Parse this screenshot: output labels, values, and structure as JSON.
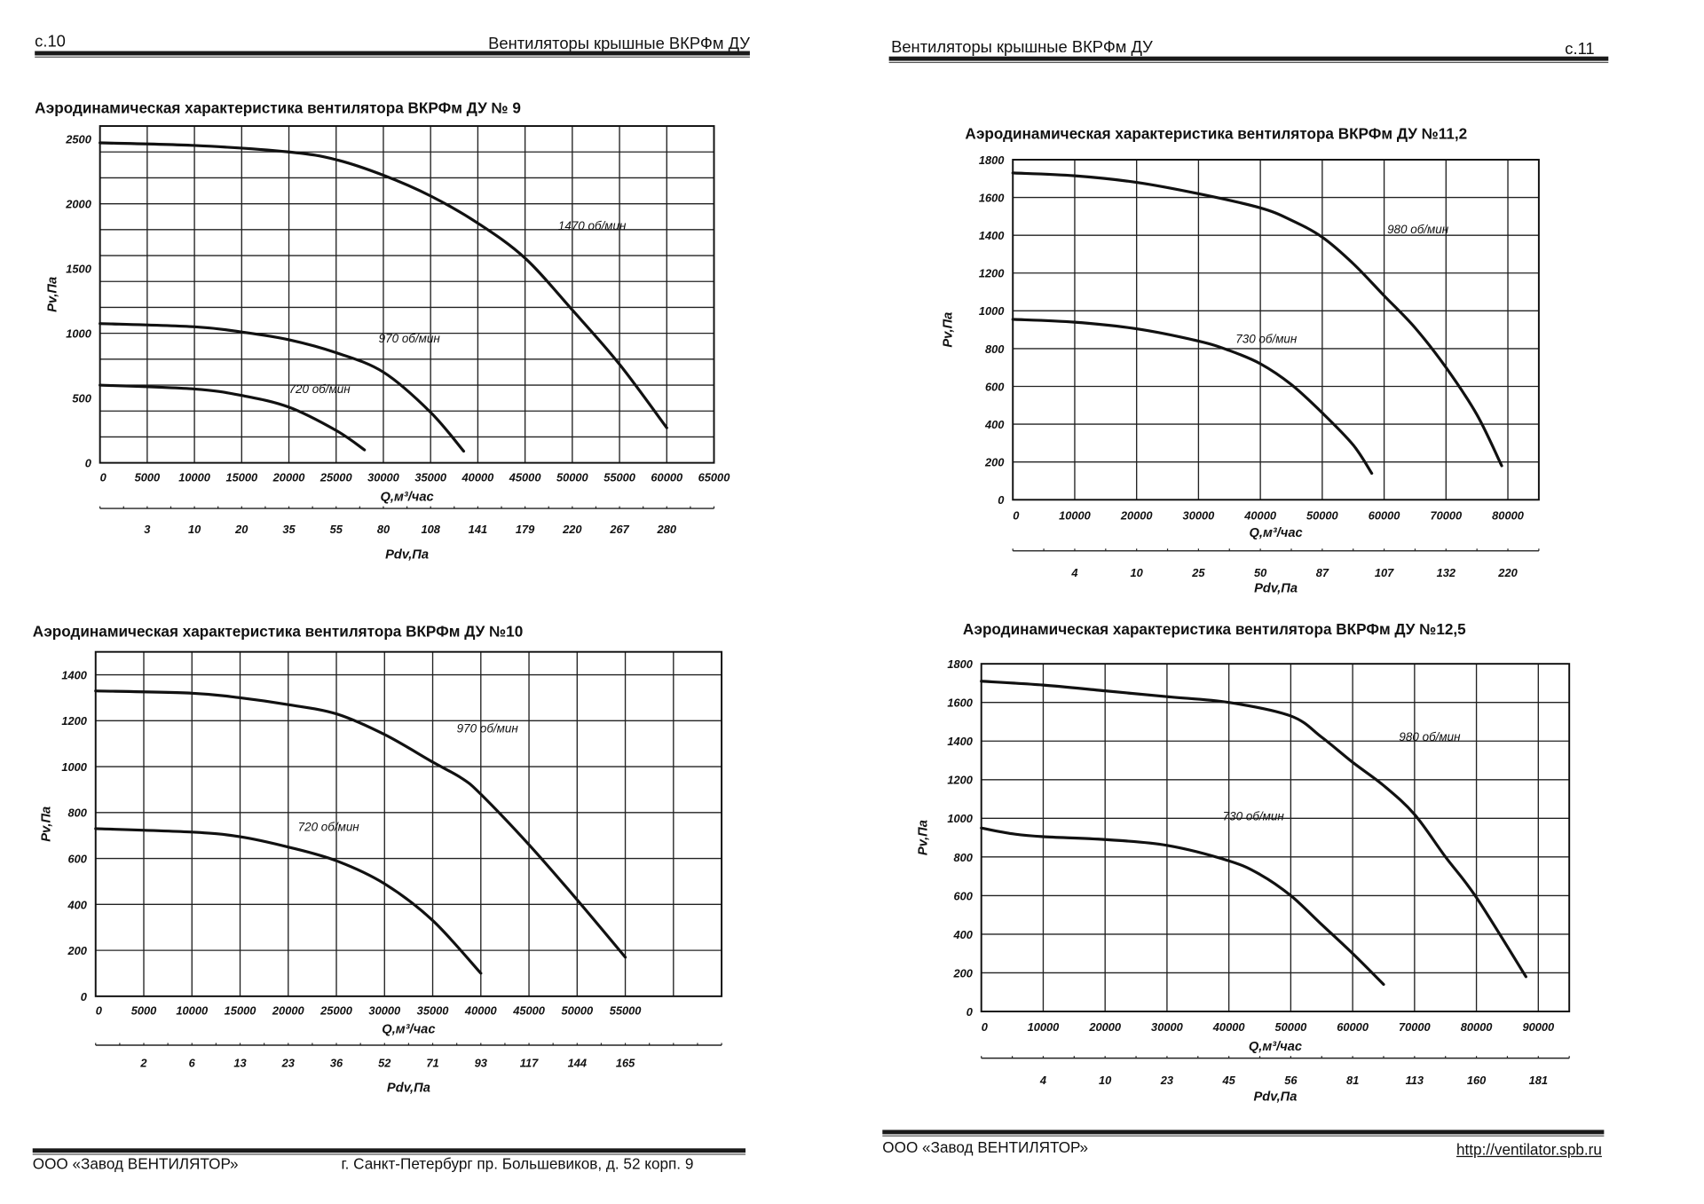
{
  "left_page": {
    "page_number": "с.10",
    "header_title": "Вентиляторы крышные ВКРФм ДУ",
    "footer_company": "ООО «Завод ВЕНТИЛЯТОР»",
    "footer_address": "г. Санкт-Петербург пр. Большевиков, д. 52 корп. 9"
  },
  "right_page": {
    "page_number": "с.11",
    "header_title": "Вентиляторы крышные ВКРФм ДУ",
    "footer_company": "ООО «Завод ВЕНТИЛЯТОР»",
    "footer_url": "http://ventilator.spb.ru"
  },
  "chart_data": [
    {
      "type": "line",
      "title": "Аэродинамическая характеристика вентилятора ВКРФм ДУ № 9",
      "xlabel": "Q,м³/час",
      "ylabel": "Pv,Па",
      "x2label": "Pdv,Па",
      "xlim": [
        0,
        65000
      ],
      "ylim": [
        0,
        2600
      ],
      "x_grid_step": 5000,
      "y_grid_step": 200,
      "grid": true,
      "x_ticks": [
        "0",
        "5000",
        "10000",
        "15000",
        "20000",
        "25000",
        "30000",
        "35000",
        "40000",
        "45000",
        "50000",
        "55000",
        "60000",
        "65000"
      ],
      "y_ticks": [
        "0",
        "500",
        "1000",
        "1500",
        "2000",
        "2500"
      ],
      "pdv_ticks": [
        {
          "q": 5000,
          "label": "3"
        },
        {
          "q": 10000,
          "label": "10"
        },
        {
          "q": 15000,
          "label": "20"
        },
        {
          "q": 20000,
          "label": "35"
        },
        {
          "q": 25000,
          "label": "55"
        },
        {
          "q": 30000,
          "label": "80"
        },
        {
          "q": 35000,
          "label": "108"
        },
        {
          "q": 40000,
          "label": "141"
        },
        {
          "q": 45000,
          "label": "179"
        },
        {
          "q": 50000,
          "label": "220"
        },
        {
          "q": 55000,
          "label": "267"
        },
        {
          "q": 60000,
          "label": "280"
        }
      ],
      "series": [
        {
          "name": "1470 об/мин",
          "label_at": [
            48500,
            1800
          ],
          "points": [
            [
              0,
              2470
            ],
            [
              10000,
              2450
            ],
            [
              20000,
              2400
            ],
            [
              25000,
              2340
            ],
            [
              30000,
              2220
            ],
            [
              35000,
              2060
            ],
            [
              40000,
              1850
            ],
            [
              45000,
              1580
            ],
            [
              50000,
              1180
            ],
            [
              55000,
              760
            ],
            [
              60000,
              270
            ]
          ]
        },
        {
          "name": "970 об/мин",
          "label_at": [
            29500,
            930
          ],
          "points": [
            [
              0,
              1075
            ],
            [
              10000,
              1050
            ],
            [
              15000,
              1010
            ],
            [
              20000,
              950
            ],
            [
              25000,
              850
            ],
            [
              30000,
              700
            ],
            [
              35000,
              390
            ],
            [
              38500,
              90
            ]
          ]
        },
        {
          "name": "720 об/мин",
          "label_at": [
            20000,
            540
          ],
          "points": [
            [
              0,
              600
            ],
            [
              10000,
              570
            ],
            [
              15000,
              520
            ],
            [
              20000,
              430
            ],
            [
              25000,
              250
            ],
            [
              28000,
              100
            ]
          ]
        }
      ]
    },
    {
      "type": "line",
      "title": "Аэродинамическая характеристика вентилятора ВКРФм ДУ №11,2",
      "xlabel": "Q,м³/час",
      "ylabel": "Pv,Па",
      "x2label": "Pdv,Па",
      "xlim": [
        0,
        85000
      ],
      "ylim": [
        0,
        1800
      ],
      "x_grid_step": 10000,
      "y_grid_step": 200,
      "grid": true,
      "x_ticks": [
        "0",
        "10000",
        "20000",
        "30000",
        "40000",
        "50000",
        "60000",
        "70000",
        "80000"
      ],
      "y_ticks": [
        "0",
        "200",
        "400",
        "600",
        "800",
        "1000",
        "1200",
        "1400",
        "1600",
        "1800"
      ],
      "pdv_ticks": [
        {
          "q": 10000,
          "label": "4"
        },
        {
          "q": 20000,
          "label": "10"
        },
        {
          "q": 30000,
          "label": "25"
        },
        {
          "q": 40000,
          "label": "50"
        },
        {
          "q": 50000,
          "label": "87"
        },
        {
          "q": 60000,
          "label": "107"
        },
        {
          "q": 70000,
          "label": "132"
        },
        {
          "q": 80000,
          "label": "220"
        }
      ],
      "series": [
        {
          "name": "980 об/мин",
          "label_at": [
            60500,
            1410
          ],
          "points": [
            [
              0,
              1730
            ],
            [
              10000,
              1715
            ],
            [
              20000,
              1680
            ],
            [
              30000,
              1620
            ],
            [
              40000,
              1545
            ],
            [
              45000,
              1480
            ],
            [
              50000,
              1390
            ],
            [
              55000,
              1250
            ],
            [
              60000,
              1080
            ],
            [
              65000,
              910
            ],
            [
              70000,
              700
            ],
            [
              75000,
              450
            ],
            [
              79000,
              180
            ]
          ]
        },
        {
          "name": "730 об/мин",
          "label_at": [
            36000,
            830
          ],
          "points": [
            [
              0,
              955
            ],
            [
              10000,
              940
            ],
            [
              20000,
              905
            ],
            [
              30000,
              840
            ],
            [
              35000,
              790
            ],
            [
              40000,
              720
            ],
            [
              45000,
              610
            ],
            [
              50000,
              460
            ],
            [
              55000,
              290
            ],
            [
              58000,
              140
            ]
          ]
        }
      ]
    },
    {
      "type": "line",
      "title": "Аэродинамическая характеристика вентилятора ВКРФм ДУ №10",
      "xlabel": "Q,м³/час",
      "ylabel": "Pv,Па",
      "x2label": "Pdv,Па",
      "xlim": [
        0,
        65000
      ],
      "ylim": [
        0,
        1500
      ],
      "x_grid_step": 5000,
      "y_grid_step": 200,
      "grid": true,
      "x_ticks": [
        "0",
        "5000",
        "10000",
        "15000",
        "20000",
        "25000",
        "30000",
        "35000",
        "40000",
        "45000",
        "50000",
        "55000"
      ],
      "y_ticks": [
        "0",
        "200",
        "400",
        "600",
        "800",
        "1000",
        "1200",
        "1400"
      ],
      "pdv_ticks": [
        {
          "q": 5000,
          "label": "2"
        },
        {
          "q": 10000,
          "label": "6"
        },
        {
          "q": 15000,
          "label": "13"
        },
        {
          "q": 20000,
          "label": "23"
        },
        {
          "q": 25000,
          "label": "36"
        },
        {
          "q": 30000,
          "label": "52"
        },
        {
          "q": 35000,
          "label": "71"
        },
        {
          "q": 40000,
          "label": "93"
        },
        {
          "q": 45000,
          "label": "117"
        },
        {
          "q": 50000,
          "label": "144"
        },
        {
          "q": 55000,
          "label": "165"
        }
      ],
      "series": [
        {
          "name": "970 об/мин",
          "label_at": [
            37500,
            1150
          ],
          "points": [
            [
              0,
              1330
            ],
            [
              10000,
              1320
            ],
            [
              15000,
              1300
            ],
            [
              20000,
              1270
            ],
            [
              25000,
              1230
            ],
            [
              30000,
              1140
            ],
            [
              35000,
              1020
            ],
            [
              38000,
              950
            ],
            [
              40000,
              880
            ],
            [
              45000,
              660
            ],
            [
              50000,
              420
            ],
            [
              55000,
              170
            ]
          ]
        },
        {
          "name": "720 об/мин",
          "label_at": [
            21000,
            720
          ],
          "points": [
            [
              0,
              730
            ],
            [
              10000,
              715
            ],
            [
              15000,
              695
            ],
            [
              20000,
              650
            ],
            [
              25000,
              590
            ],
            [
              30000,
              490
            ],
            [
              35000,
              330
            ],
            [
              40000,
              100
            ]
          ]
        }
      ]
    },
    {
      "type": "line",
      "title": "Аэродинамическая характеристика вентилятора ВКРФм ДУ №12,5",
      "xlabel": "Q,м³/час",
      "ylabel": "Pv,Па",
      "x2label": "Pdv,Па",
      "xlim": [
        0,
        95000
      ],
      "ylim": [
        0,
        1800
      ],
      "x_grid_step": 10000,
      "y_grid_step": 200,
      "grid": true,
      "x_ticks": [
        "0",
        "10000",
        "20000",
        "30000",
        "40000",
        "50000",
        "60000",
        "70000",
        "80000",
        "90000"
      ],
      "y_ticks": [
        "0",
        "200",
        "400",
        "600",
        "800",
        "1000",
        "1200",
        "1400",
        "1600",
        "1800"
      ],
      "pdv_ticks": [
        {
          "q": 10000,
          "label": "4"
        },
        {
          "q": 20000,
          "label": "10"
        },
        {
          "q": 30000,
          "label": "23"
        },
        {
          "q": 40000,
          "label": "45"
        },
        {
          "q": 50000,
          "label": "56"
        },
        {
          "q": 60000,
          "label": "81"
        },
        {
          "q": 70000,
          "label": "113"
        },
        {
          "q": 80000,
          "label": "160"
        },
        {
          "q": 90000,
          "label": "181"
        }
      ],
      "series": [
        {
          "name": "980 об/мин",
          "label_at": [
            67500,
            1400
          ],
          "points": [
            [
              0,
              1710
            ],
            [
              10000,
              1690
            ],
            [
              20000,
              1660
            ],
            [
              30000,
              1630
            ],
            [
              40000,
              1600
            ],
            [
              50000,
              1530
            ],
            [
              55000,
              1420
            ],
            [
              60000,
              1290
            ],
            [
              65000,
              1170
            ],
            [
              70000,
              1020
            ],
            [
              75000,
              800
            ],
            [
              80000,
              590
            ],
            [
              88000,
              180
            ]
          ]
        },
        {
          "name": "730 об/мин",
          "label_at": [
            39000,
            990
          ],
          "points": [
            [
              0,
              950
            ],
            [
              5000,
              920
            ],
            [
              10000,
              905
            ],
            [
              20000,
              890
            ],
            [
              30000,
              860
            ],
            [
              40000,
              780
            ],
            [
              45000,
              710
            ],
            [
              50000,
              600
            ],
            [
              55000,
              450
            ],
            [
              60000,
              300
            ],
            [
              65000,
              140
            ]
          ]
        }
      ]
    }
  ]
}
